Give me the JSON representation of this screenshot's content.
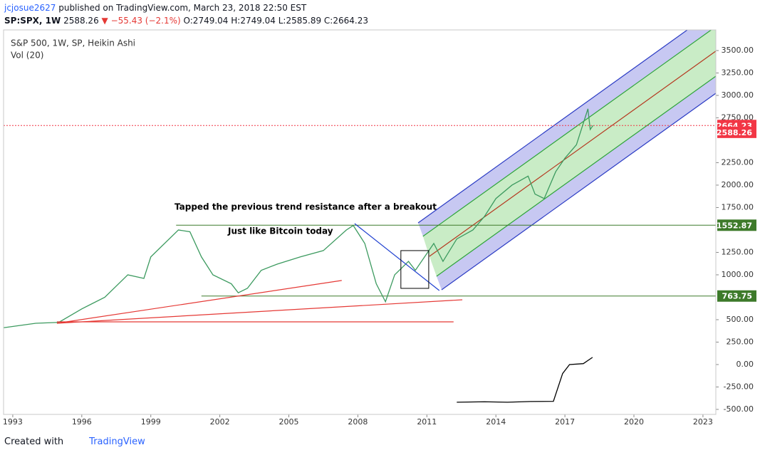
{
  "header": {
    "author": "jcjosue2627",
    "published": "published on TradingView.com, March 23, 2018 22:50 EST",
    "symbol": "SP:SPX, 1W",
    "last": "2588.26",
    "change": "▼ −55.43 (−2.1%)",
    "ohlc": "O:2749.04 H:2749.04 L:2585.89 C:2664.23"
  },
  "footer": {
    "created": "Created with",
    "brand": "TradingView"
  },
  "chart_data": {
    "type": "line",
    "annotations": [
      "Tapped the previous trend resistance after a breakout",
      "Just like Bitcoin today"
    ],
    "xlim": [
      1992.6,
      2023.56
    ],
    "xticks": [
      1993,
      1996,
      1999,
      2002,
      2005,
      2008,
      2011,
      2014,
      2017,
      2020,
      2023
    ],
    "ylim": [
      -556,
      3730
    ],
    "yticks": [
      {
        "value": 3500,
        "label": "3500.00"
      },
      {
        "value": 3250,
        "label": "3250.00"
      },
      {
        "value": 3000,
        "label": "3000.00"
      },
      {
        "value": 2750,
        "label": "2750.00"
      },
      {
        "value": 2250,
        "label": "2250.00"
      },
      {
        "value": 2000,
        "label": "2000.00"
      },
      {
        "value": 1750,
        "label": "1750.00"
      },
      {
        "value": 1250,
        "label": "1250.00"
      },
      {
        "value": 1000,
        "label": "1000.00"
      },
      {
        "value": 500,
        "label": "500.00"
      },
      {
        "value": 250,
        "label": "250.00"
      },
      {
        "value": 0,
        "label": "0.00"
      },
      {
        "value": -250,
        "label": "-250.00"
      },
      {
        "value": -500,
        "label": "-500.00"
      }
    ],
    "series": [
      {
        "name": "S&P 500, 1W, SP, Heikin Ashi",
        "color": "#3c9a5f",
        "x": [
          1992.6,
          1994,
          1995,
          1996,
          1997,
          1998,
          1998.7,
          1999,
          2000.2,
          2000.7,
          2001.2,
          2001.7,
          2002.5,
          2002.8,
          2003.2,
          2003.8,
          2004.5,
          2005.5,
          2006.5,
          2007.5,
          2007.8,
          2008.3,
          2008.8,
          2009.2,
          2009.6,
          2010.2,
          2010.5,
          2011.3,
          2011.7,
          2012.3,
          2013,
          2013.5,
          2014,
          2014.7,
          2015.4,
          2015.7,
          2016.1,
          2016.6,
          2017,
          2017.5,
          2018,
          2018.1,
          2018.22
        ],
        "values": [
          410,
          460,
          470,
          620,
          750,
          1000,
          960,
          1200,
          1500,
          1480,
          1200,
          1000,
          900,
          800,
          850,
          1050,
          1120,
          1200,
          1270,
          1500,
          1550,
          1350,
          900,
          700,
          1000,
          1150,
          1050,
          1350,
          1150,
          1400,
          1500,
          1650,
          1850,
          2000,
          2100,
          1900,
          1850,
          2150,
          2300,
          2450,
          2850,
          2620,
          2664
        ]
      },
      {
        "name": "Vol (20)",
        "color": "#000000",
        "x": [
          2012.3,
          2013.5,
          2014.5,
          2015.5,
          2016.5,
          2016.9,
          2017.2,
          2017.8,
          2018.2
        ],
        "values": [
          -420,
          -415,
          -420,
          -412,
          -410,
          -100,
          0,
          10,
          80
        ]
      }
    ],
    "levels": [
      {
        "value": 2664.23,
        "color": "#f23645",
        "start": 1992.6,
        "dashed": true
      },
      {
        "value": 1552.87,
        "color": "#3d7a2a",
        "start": 2000.1,
        "dashed": false
      },
      {
        "value": 763.75,
        "color": "#3d7a2a",
        "start": 2001.2,
        "dashed": false
      }
    ],
    "price_labels": [
      {
        "value": 2664.23,
        "color": "#f23645"
      },
      {
        "value": 2588.26,
        "color": "#f23645"
      },
      {
        "value": 1552.87,
        "color": "#3d7a2a"
      },
      {
        "value": 763.75,
        "color": "#3d7a2a"
      }
    ],
    "drawings": [
      {
        "color": "#e53935",
        "x": [
          1994.92,
          2007.3
        ],
        "y": [
          460,
          937
        ]
      },
      {
        "color": "#e53935",
        "x": [
          1994.92,
          2012.54
        ],
        "y": [
          460,
          722
        ]
      },
      {
        "color": "#e53935",
        "x": [
          1994.92,
          2012.16
        ],
        "y": [
          476,
          476
        ]
      },
      {
        "color": "#1e3fd0",
        "x": [
          2007.86,
          2011.54
        ],
        "y": [
          1571,
          825
        ]
      }
    ],
    "box": {
      "color": "#000000",
      "x": [
        2009.87,
        2011.08
      ],
      "y": [
        1270,
        849
      ]
    },
    "channel": [
      {
        "color": "#2a3bc4",
        "x": [
          2010.62,
          2023.56
        ],
        "y": [
          1579,
          3958
        ]
      },
      {
        "color": "#2ea43a",
        "x": [
          2010.83,
          2023.56
        ],
        "y": [
          1429,
          3767
        ]
      },
      {
        "color": "#b5381f",
        "x": [
          2011.11,
          2023.56
        ],
        "y": [
          1206,
          3494
        ]
      },
      {
        "color": "#2ea43a",
        "x": [
          2011.42,
          2023.56
        ],
        "y": [
          984,
          3214
        ]
      },
      {
        "color": "#2a3bc4",
        "x": [
          2011.64,
          2023.56
        ],
        "y": [
          833,
          3024
        ]
      }
    ],
    "channel_fills": [
      "#c7c8f2",
      "#c9ecc6",
      "#c9ecc6",
      "#c7c8f2"
    ]
  }
}
